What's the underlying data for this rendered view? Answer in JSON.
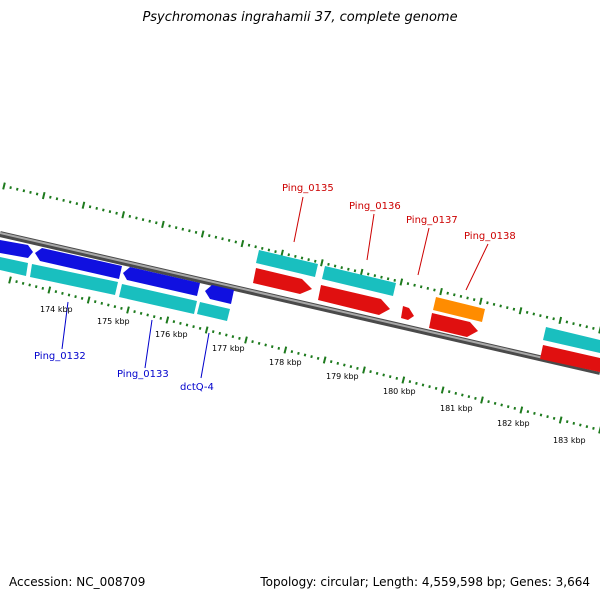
{
  "title": "Psychromonas ingrahamii 37, complete genome",
  "accession": "Accession: NC_008709",
  "topology": "Topology: circular; Length: 4,559,598 bp; Genes: 3,664",
  "colors": {
    "backbone": "#8a8a8a",
    "tick": "#1d7a1d",
    "blue_gene": "#1010e0",
    "cyan_gene": "#19bfbf",
    "red_gene": "#e01010",
    "orange_gene": "#ff8c00",
    "red_label": "#cc0000",
    "blue_label": "#0000cc"
  },
  "scale_labels": [
    "174 kbp",
    "175 kbp",
    "176 kbp",
    "177 kbp",
    "178 kbp",
    "179 kbp",
    "180 kbp",
    "181 kbp",
    "182 kbp",
    "183 kbp"
  ],
  "gene_labels": {
    "top": [
      "Ping_0135",
      "Ping_0136",
      "Ping_0137",
      "Ping_0138"
    ],
    "bottom": [
      "Ping_0132",
      "Ping_0133",
      "dctQ-4"
    ]
  }
}
